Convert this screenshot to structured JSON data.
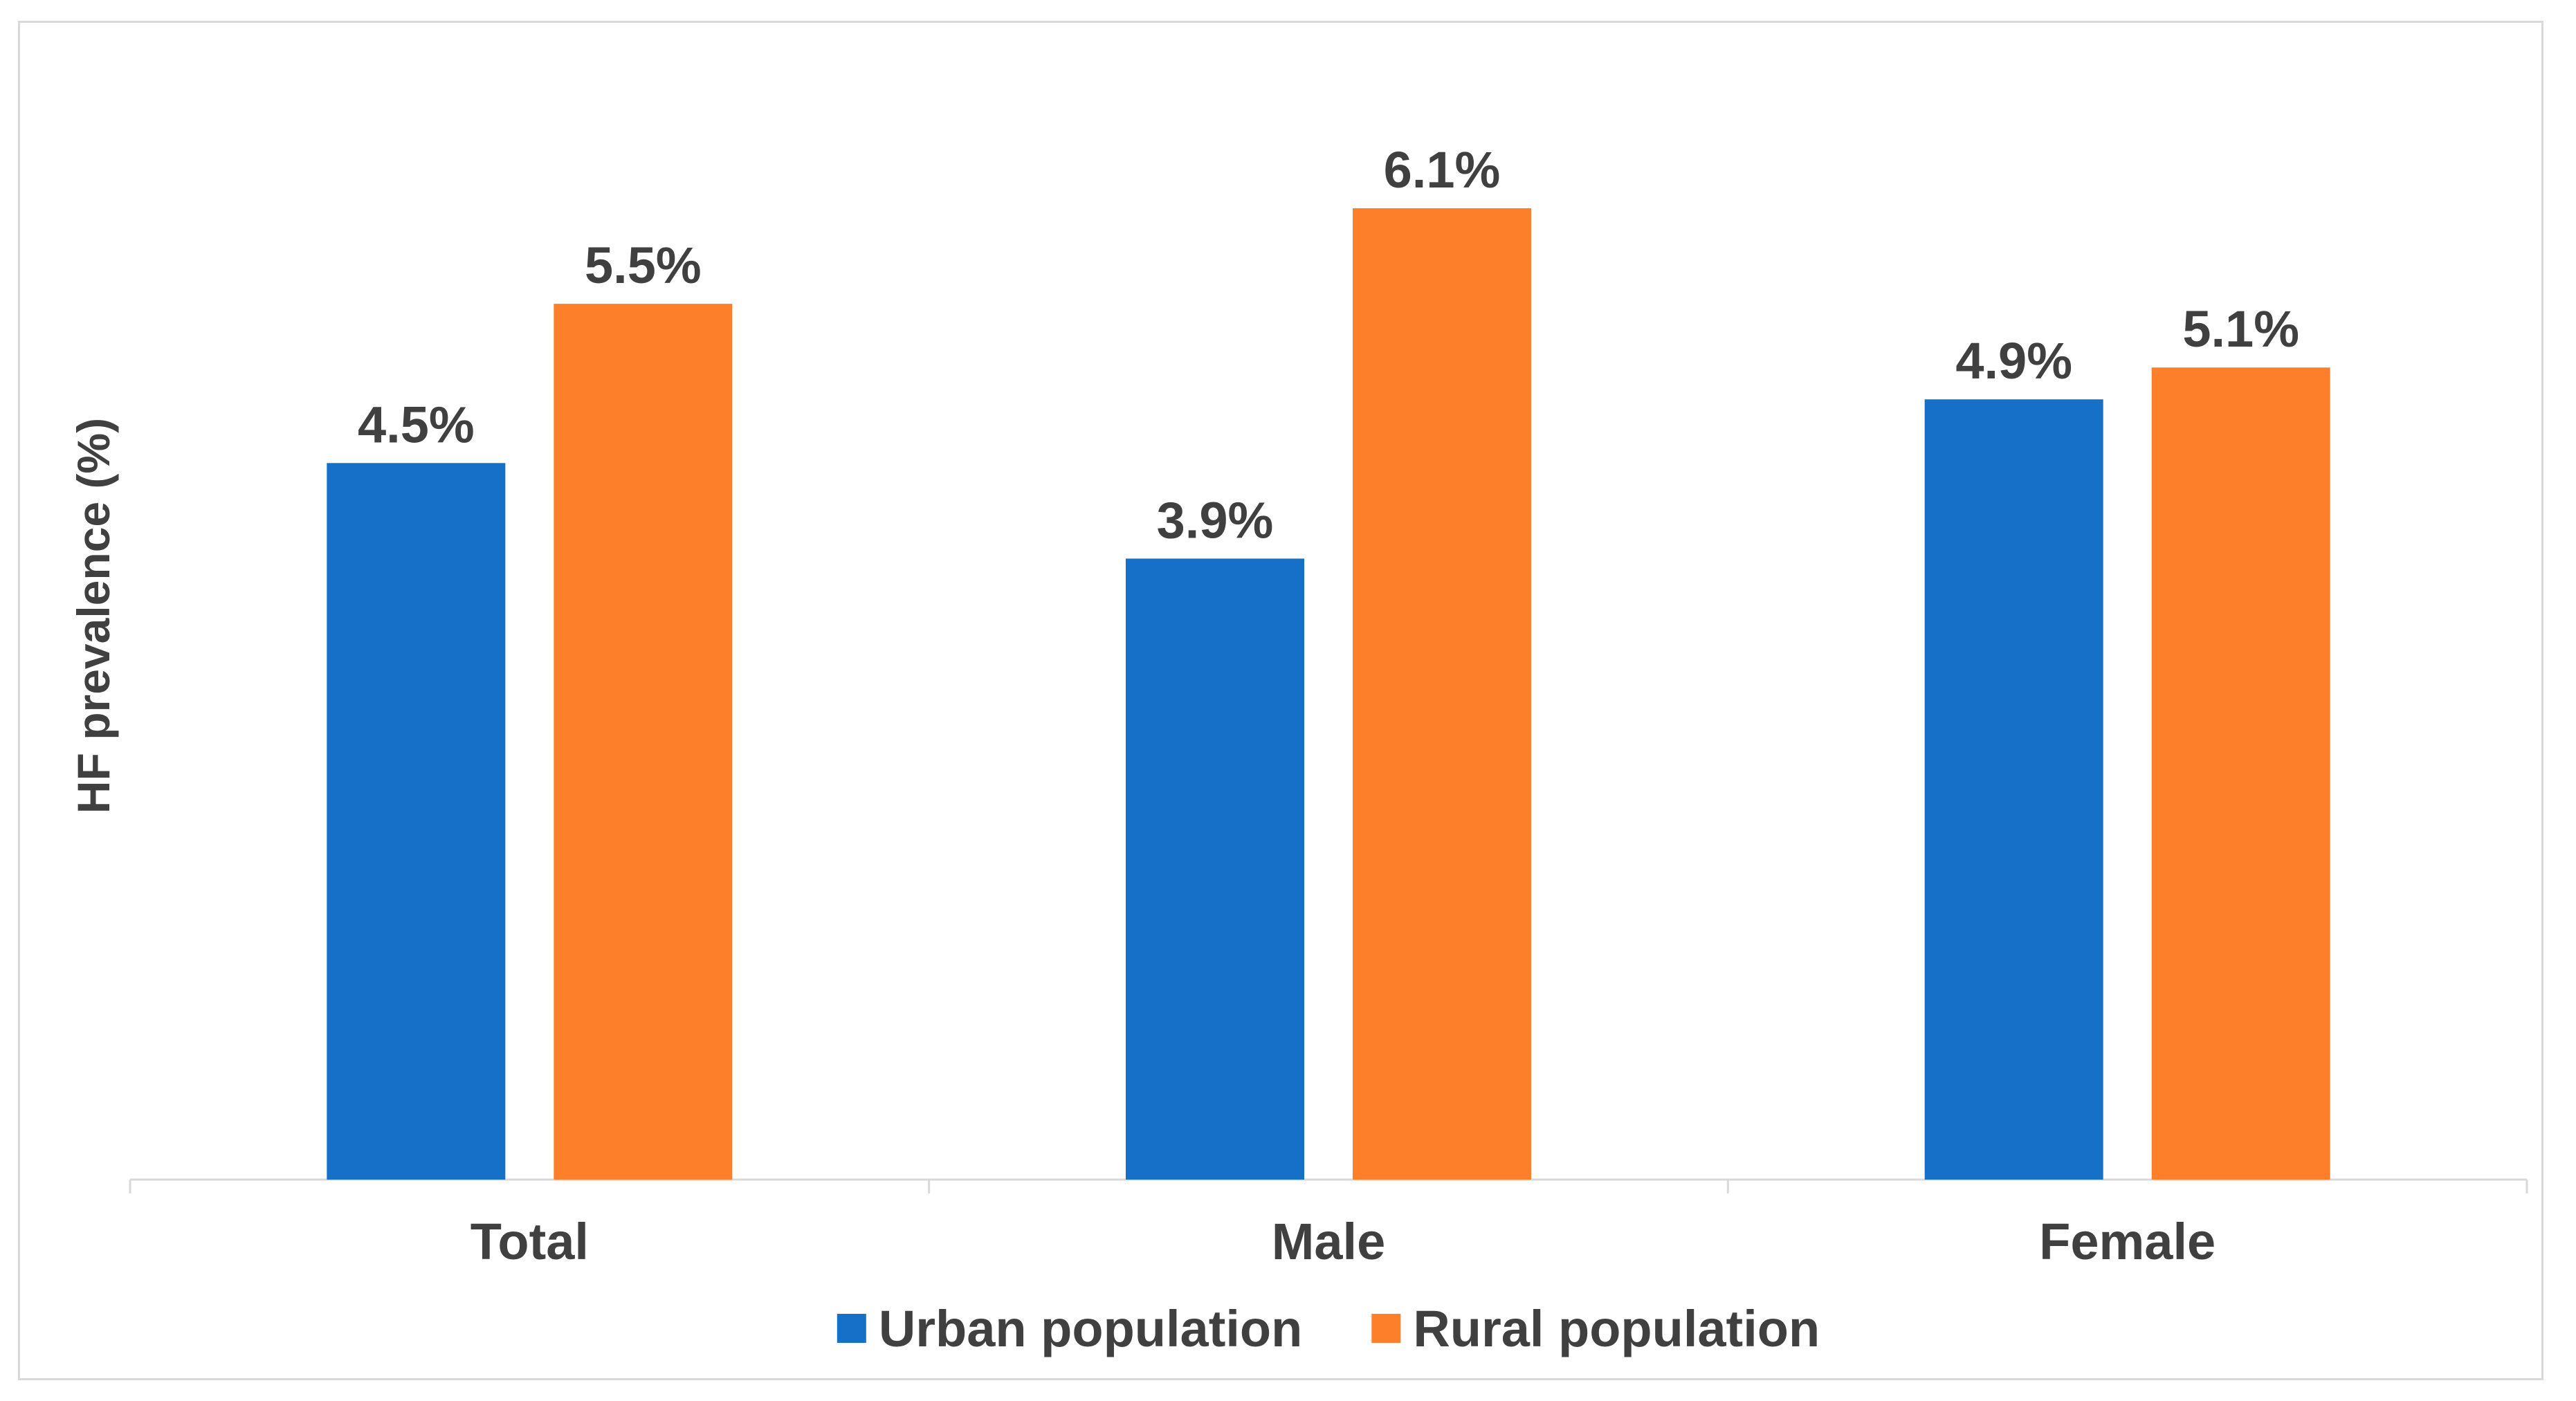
{
  "chart_data": {
    "type": "bar",
    "title": "",
    "xlabel": "",
    "ylabel": "HF prevalence (%)",
    "ylim": [
      0,
      6.3
    ],
    "categories": [
      "Total",
      "Male",
      "Female"
    ],
    "series": [
      {
        "name": "Urban population",
        "color": "#1670c8",
        "values": [
          4.5,
          3.9,
          4.9
        ],
        "labels": [
          "4.5%",
          "3.9%",
          "4.9%"
        ]
      },
      {
        "name": "Rural population",
        "color": "#fe7f2a",
        "values": [
          5.5,
          6.1,
          5.1
        ],
        "labels": [
          "5.5%",
          "6.1%",
          "5.1%"
        ]
      }
    ],
    "grid": false,
    "legend": "bottom"
  }
}
